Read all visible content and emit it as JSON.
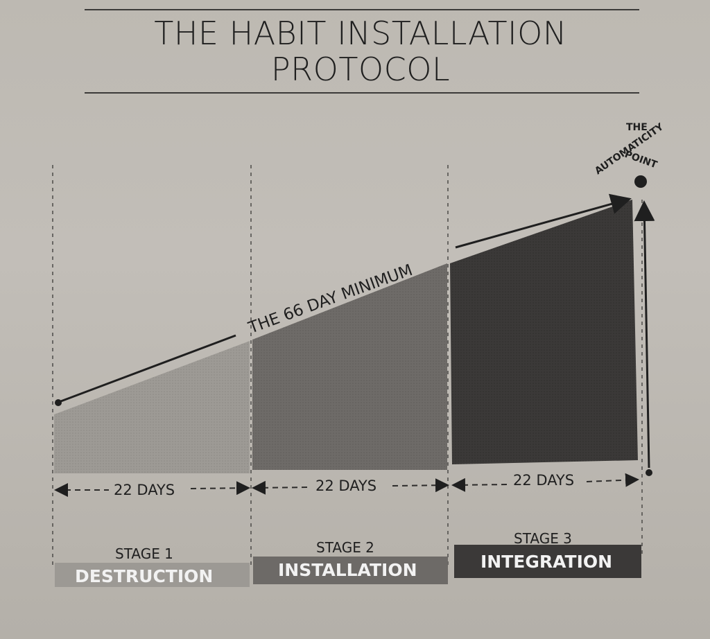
{
  "title_line1": "THE HABIT INSTALLATION",
  "title_line2": "PROTOCOL",
  "diagonal_label": "THE 66 DAY MINIMUM",
  "endpoint": {
    "line1": "THE",
    "line2": "AUTOMATICITY",
    "line3": "POINT"
  },
  "durations": [
    "22 DAYS",
    "22 DAYS",
    "22 DAYS"
  ],
  "stages": [
    {
      "number": "STAGE 1",
      "name": "DESTRUCTION",
      "color": "#9b9893"
    },
    {
      "number": "STAGE 2",
      "name": "INSTALLATION",
      "color": "#6d6a67"
    },
    {
      "number": "STAGE 3",
      "name": "INTEGRATION",
      "color": "#3b3938"
    }
  ]
}
